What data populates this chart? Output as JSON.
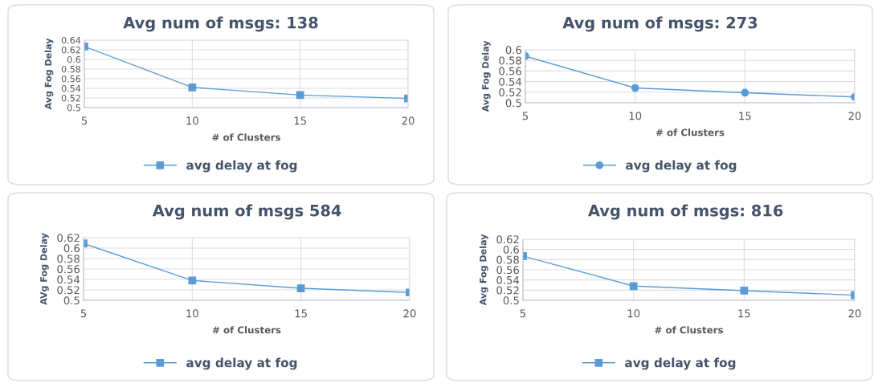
{
  "chart_data": [
    {
      "type": "line",
      "title": "Avg num of msgs: 138",
      "xlabel": "# of Clusters",
      "ylabel": "Avg Fog Delay",
      "categories": [
        "5",
        "10",
        "15",
        "20"
      ],
      "series": [
        {
          "name": "avg delay at fog",
          "color": "#5b9bd5",
          "values": [
            0.627,
            0.542,
            0.526,
            0.519
          ]
        }
      ],
      "ylim": [
        0.5,
        0.64
      ],
      "yticks": [
        0.5,
        0.52,
        0.54,
        0.56,
        0.58,
        0.6,
        0.62,
        0.64
      ],
      "grid": true,
      "legend": "bottom",
      "marker": "square"
    },
    {
      "type": "line",
      "title": "Avg num of msgs: 273",
      "xlabel": "# of Clusters",
      "ylabel": "Avg Fog Delay",
      "categories": [
        "5",
        "10",
        "15",
        "20"
      ],
      "series": [
        {
          "name": "avg delay at fog",
          "color": "#5b9bd5",
          "values": [
            0.588,
            0.528,
            0.519,
            0.511
          ]
        }
      ],
      "ylim": [
        0.5,
        0.6
      ],
      "yticks": [
        0.5,
        0.52,
        0.54,
        0.56,
        0.58,
        0.6
      ],
      "grid": true,
      "legend": "bottom",
      "marker": "circle"
    },
    {
      "type": "line",
      "title": "Avg num of msgs 584",
      "xlabel": "# of Clusters",
      "ylabel": "AVg Fog Delay",
      "categories": [
        "5",
        "10",
        "15",
        "20"
      ],
      "series": [
        {
          "name": "avg delay at fog",
          "color": "#5b9bd5",
          "values": [
            0.609,
            0.538,
            0.523,
            0.515
          ]
        }
      ],
      "ylim": [
        0.5,
        0.62
      ],
      "yticks": [
        0.5,
        0.52,
        0.54,
        0.56,
        0.58,
        0.6,
        0.62
      ],
      "grid": true,
      "legend": "bottom",
      "marker": "square"
    },
    {
      "type": "line",
      "title": "Avg num of msgs: 816",
      "xlabel": "# of Clusters",
      "ylabel": "Avg Fog Delay",
      "categories": [
        "5",
        "10",
        "15",
        "20"
      ],
      "series": [
        {
          "name": "avg delay at fog",
          "color": "#5b9bd5",
          "values": [
            0.587,
            0.528,
            0.519,
            0.51
          ]
        }
      ],
      "ylim": [
        0.5,
        0.62
      ],
      "yticks": [
        0.5,
        0.52,
        0.54,
        0.56,
        0.58,
        0.6,
        0.62
      ],
      "grid": true,
      "legend": "bottom",
      "marker": "square"
    }
  ]
}
